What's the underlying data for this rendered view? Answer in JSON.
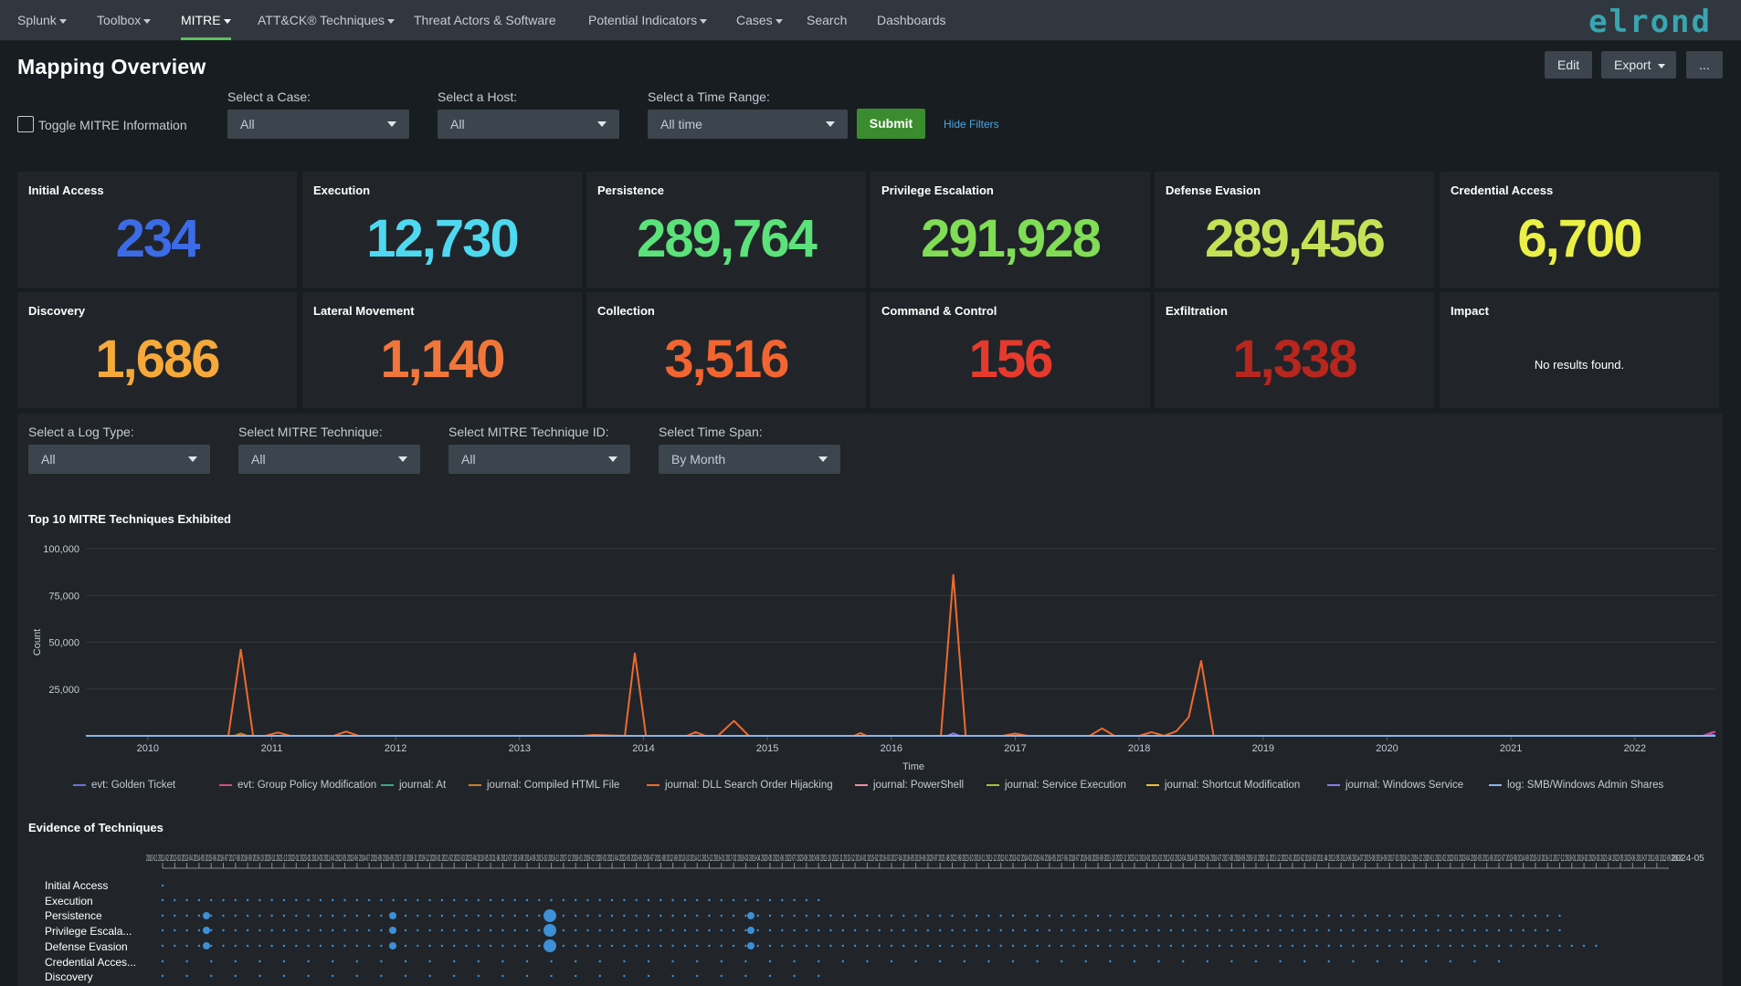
{
  "nav": {
    "items": [
      {
        "label": "Splunk",
        "dropdown": true,
        "active": false
      },
      {
        "label": "Toolbox",
        "dropdown": true,
        "active": false
      },
      {
        "label": "MITRE",
        "dropdown": true,
        "active": true
      },
      {
        "label": "ATT&CK® Techniques",
        "dropdown": true,
        "active": false
      },
      {
        "label": "Threat Actors & Software",
        "dropdown": false,
        "active": false
      },
      {
        "label": "Potential Indicators",
        "dropdown": true,
        "active": false
      },
      {
        "label": "Cases",
        "dropdown": true,
        "active": false
      },
      {
        "label": "Search",
        "dropdown": false,
        "active": false
      },
      {
        "label": "Dashboards",
        "dropdown": false,
        "active": false
      }
    ],
    "logo": "elrond"
  },
  "header": {
    "title": "Mapping Overview",
    "edit_label": "Edit",
    "export_label": "Export",
    "more_label": "..."
  },
  "filters": {
    "toggle_label": "Toggle MITRE Information",
    "case_label": "Select a Case:",
    "case_value": "All",
    "host_label": "Select a Host:",
    "host_value": "All",
    "time_label": "Select a Time Range:",
    "time_value": "All time",
    "submit_label": "Submit",
    "hide_label": "Hide Filters"
  },
  "tiles": [
    {
      "title": "Initial Access",
      "value": "234",
      "color": "#3c6be6"
    },
    {
      "title": "Execution",
      "value": "12,730",
      "color": "#4fd9f0"
    },
    {
      "title": "Persistence",
      "value": "289,764",
      "color": "#5be27a"
    },
    {
      "title": "Privilege Escalation",
      "value": "291,928",
      "color": "#80dd55"
    },
    {
      "title": "Defense Evasion",
      "value": "289,456",
      "color": "#c5e256"
    },
    {
      "title": "Credential Access",
      "value": "6,700",
      "color": "#eaf046"
    },
    {
      "title": "Discovery",
      "value": "1,686",
      "color": "#f5a93a"
    },
    {
      "title": "Lateral Movement",
      "value": "1,140",
      "color": "#f0763b"
    },
    {
      "title": "Collection",
      "value": "3,516",
      "color": "#f26430"
    },
    {
      "title": "Command & Control",
      "value": "156",
      "color": "#e63a2d"
    },
    {
      "title": "Exfiltration",
      "value": "1,338",
      "color": "#b8261e"
    },
    {
      "title": "Impact",
      "value": "",
      "empty": "No results found.",
      "color": "#ffffff"
    }
  ],
  "panel_filters": {
    "log_label": "Select a Log Type:",
    "log_value": "All",
    "tech_label": "Select MITRE Technique:",
    "tech_value": "All",
    "techid_label": "Select MITRE Technique ID:",
    "techid_value": "All",
    "span_label": "Select Time Span:",
    "span_value": "By Month"
  },
  "chart_section_title": "Top 10 MITRE Techniques Exhibited",
  "chart_data": {
    "type": "line",
    "title": "Top 10 MITRE Techniques Exhibited",
    "xlabel": "Time",
    "ylabel": "Count",
    "ylim": [
      0,
      100000
    ],
    "yticks": [
      "100,000",
      "75,000",
      "50,000",
      "25,000"
    ],
    "xlim": [
      2009.5,
      2022.65
    ],
    "xticks": [
      "2010",
      "2011",
      "2012",
      "2013",
      "2014",
      "2015",
      "2016",
      "2017",
      "2018",
      "2019",
      "2020",
      "2021",
      "2022"
    ],
    "grid": true,
    "legend_position": "bottom",
    "series": [
      {
        "name": "evt: Golden Ticket",
        "color": "#6b6fe0",
        "points": [
          [
            2009.5,
            0
          ],
          [
            2022.55,
            0
          ],
          [
            2022.6,
            1200
          ],
          [
            2022.65,
            0
          ]
        ]
      },
      {
        "name": "evt: Group Policy Modification",
        "color": "#d24b86",
        "points": [
          [
            2009.5,
            0
          ],
          [
            2022.56,
            0
          ],
          [
            2022.62,
            1800
          ],
          [
            2022.65,
            2200
          ]
        ]
      },
      {
        "name": "journal: At",
        "color": "#3aa68d",
        "points": [
          [
            2009.5,
            0
          ],
          [
            2022.65,
            0
          ]
        ]
      },
      {
        "name": "journal: Compiled HTML File",
        "color": "#c97f2c",
        "points": [
          [
            2009.5,
            0
          ],
          [
            2010.7,
            0
          ],
          [
            2010.75,
            1200
          ],
          [
            2010.8,
            0
          ],
          [
            2022.65,
            0
          ]
        ]
      },
      {
        "name": "journal: DLL Search Order Hijacking",
        "color": "#ef6a2e",
        "points": [
          [
            2009.5,
            0
          ],
          [
            2010.65,
            0
          ],
          [
            2010.75,
            46000
          ],
          [
            2010.85,
            0
          ],
          [
            2010.95,
            0
          ],
          [
            2011.05,
            1800
          ],
          [
            2011.15,
            0
          ],
          [
            2011.5,
            0
          ],
          [
            2011.6,
            2300
          ],
          [
            2011.7,
            0
          ],
          [
            2013.5,
            0
          ],
          [
            2013.6,
            500
          ],
          [
            2013.85,
            0
          ],
          [
            2013.93,
            44000
          ],
          [
            2014.02,
            0
          ],
          [
            2014.35,
            0
          ],
          [
            2014.42,
            2000
          ],
          [
            2014.5,
            0
          ],
          [
            2014.6,
            0
          ],
          [
            2014.73,
            8000
          ],
          [
            2014.85,
            0
          ],
          [
            2015.7,
            0
          ],
          [
            2015.75,
            1500
          ],
          [
            2015.8,
            0
          ],
          [
            2016.4,
            0
          ],
          [
            2016.5,
            86000
          ],
          [
            2016.6,
            0
          ],
          [
            2016.9,
            0
          ],
          [
            2017.0,
            1200
          ],
          [
            2017.1,
            0
          ],
          [
            2017.6,
            0
          ],
          [
            2017.7,
            4000
          ],
          [
            2017.8,
            0
          ],
          [
            2018.0,
            0
          ],
          [
            2018.1,
            2000
          ],
          [
            2018.2,
            0
          ],
          [
            2018.3,
            2500
          ],
          [
            2018.4,
            10000
          ],
          [
            2018.5,
            40000
          ],
          [
            2018.6,
            0
          ],
          [
            2022.65,
            0
          ]
        ]
      },
      {
        "name": "journal: PowerShell",
        "color": "#f08da3",
        "points": [
          [
            2009.5,
            0
          ],
          [
            2022.65,
            0
          ]
        ]
      },
      {
        "name": "journal: Service Execution",
        "color": "#a3c23a",
        "points": [
          [
            2009.5,
            0
          ],
          [
            2022.65,
            0
          ]
        ]
      },
      {
        "name": "journal: Shortcut Modification",
        "color": "#e8c03a",
        "points": [
          [
            2009.5,
            0
          ],
          [
            2022.65,
            0
          ]
        ]
      },
      {
        "name": "journal: Windows Service",
        "color": "#8a7ce8",
        "points": [
          [
            2009.5,
            0
          ],
          [
            2016.45,
            0
          ],
          [
            2016.5,
            1300
          ],
          [
            2016.55,
            0
          ],
          [
            2022.65,
            0
          ]
        ]
      },
      {
        "name": "log: SMB/Windows Admin Shares",
        "color": "#8cb4e8",
        "points": [
          [
            2009.5,
            0
          ],
          [
            2022.65,
            0
          ]
        ]
      }
    ]
  },
  "evidence_section_title": "Evidence of Techniques",
  "evidence": {
    "rows": [
      "Initial Access",
      "Execution",
      "Persistence",
      "Privilege Escala...",
      "Defense Evasion",
      "Credential Acces...",
      "Discovery"
    ],
    "last_tick_label": "2024-05"
  }
}
